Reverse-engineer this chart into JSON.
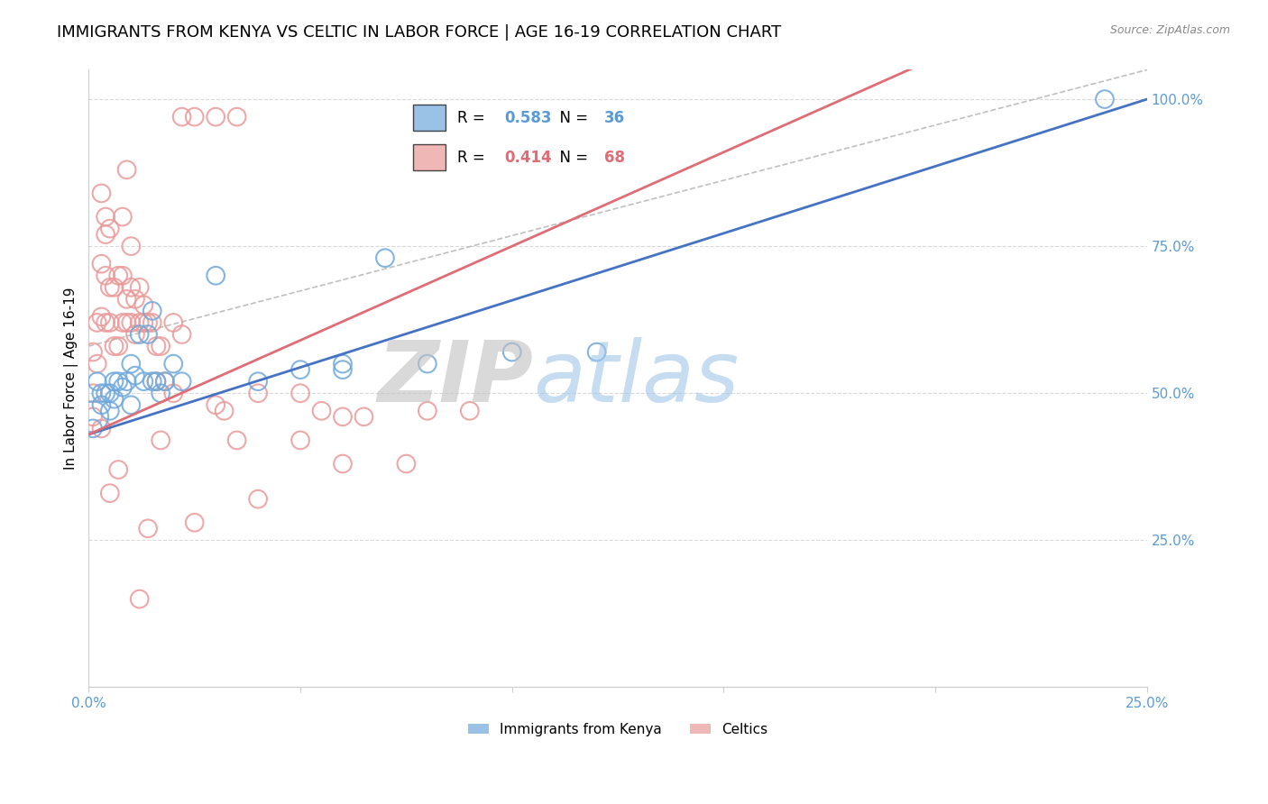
{
  "title": "IMMIGRANTS FROM KENYA VS CELTIC IN LABOR FORCE | AGE 16-19 CORRELATION CHART",
  "source": "Source: ZipAtlas.com",
  "ylabel_left": "In Labor Force | Age 16-19",
  "x_ticks": [
    0.0,
    0.05,
    0.1,
    0.15,
    0.2,
    0.25
  ],
  "y_ticks": [
    0.0,
    0.25,
    0.5,
    0.75,
    1.0
  ],
  "y_tick_labels": [
    "",
    "25.0%",
    "50.0%",
    "75.0%",
    "100.0%"
  ],
  "xlim": [
    0.0,
    0.25
  ],
  "ylim": [
    0.0,
    1.05
  ],
  "legend_R_kenya": "R = 0.583",
  "legend_N_kenya": "N = 36",
  "legend_R_celtic": "R = 0.414",
  "legend_N_celtic": "N = 68",
  "legend_labels_bottom": [
    "Immigrants from Kenya",
    "Celtics"
  ],
  "kenya_color": "#6fa8dc",
  "celtic_color": "#ea9999",
  "kenya_line_color": "#4472c4",
  "celtic_line_color": "#e06c75",
  "ref_line_color": "#c0c0c0",
  "background_color": "#ffffff",
  "grid_color": "#d9d9d9",
  "title_fontsize": 13,
  "axis_label_fontsize": 11,
  "tick_fontsize": 11,
  "tick_color": "#5b9bd5",
  "watermark_ZIP_color": "#c0c0c0",
  "watermark_atlas_color": "#9fc5e8",
  "watermark_fontsize": 68,
  "kenya_x": [
    0.001,
    0.001,
    0.002,
    0.003,
    0.003,
    0.004,
    0.005,
    0.005,
    0.006,
    0.006,
    0.007,
    0.008,
    0.009,
    0.01,
    0.01,
    0.011,
    0.012,
    0.013,
    0.014,
    0.015,
    0.015,
    0.016,
    0.017,
    0.018,
    0.02,
    0.022,
    0.03,
    0.04,
    0.05,
    0.06,
    0.06,
    0.07,
    0.08,
    0.1,
    0.12,
    0.24
  ],
  "kenya_y": [
    0.46,
    0.44,
    0.52,
    0.5,
    0.48,
    0.5,
    0.47,
    0.5,
    0.49,
    0.52,
    0.52,
    0.51,
    0.52,
    0.48,
    0.55,
    0.53,
    0.6,
    0.52,
    0.6,
    0.64,
    0.52,
    0.52,
    0.5,
    0.52,
    0.55,
    0.52,
    0.7,
    0.52,
    0.54,
    0.54,
    0.55,
    0.73,
    0.55,
    0.57,
    0.57,
    1.0
  ],
  "kenya_sizes": [
    600,
    200,
    200,
    200,
    200,
    200,
    200,
    200,
    200,
    200,
    200,
    200,
    200,
    200,
    200,
    200,
    200,
    200,
    200,
    200,
    200,
    200,
    200,
    200,
    200,
    200,
    200,
    200,
    200,
    200,
    200,
    200,
    200,
    200,
    200,
    200
  ],
  "celtic_x": [
    0.001,
    0.001,
    0.001,
    0.002,
    0.002,
    0.003,
    0.003,
    0.003,
    0.004,
    0.004,
    0.004,
    0.005,
    0.005,
    0.005,
    0.006,
    0.006,
    0.007,
    0.007,
    0.008,
    0.008,
    0.008,
    0.009,
    0.009,
    0.01,
    0.01,
    0.01,
    0.011,
    0.011,
    0.012,
    0.012,
    0.013,
    0.013,
    0.014,
    0.015,
    0.016,
    0.017,
    0.018,
    0.02,
    0.022,
    0.025,
    0.03,
    0.032,
    0.035,
    0.04,
    0.05,
    0.055,
    0.06,
    0.065,
    0.075,
    0.09,
    0.003,
    0.004,
    0.005,
    0.007,
    0.009,
    0.012,
    0.014,
    0.016,
    0.017,
    0.02,
    0.022,
    0.025,
    0.03,
    0.035,
    0.04,
    0.05,
    0.06,
    0.08
  ],
  "celtic_y": [
    0.46,
    0.5,
    0.57,
    0.55,
    0.62,
    0.44,
    0.63,
    0.72,
    0.62,
    0.7,
    0.77,
    0.62,
    0.68,
    0.78,
    0.58,
    0.68,
    0.58,
    0.7,
    0.62,
    0.7,
    0.8,
    0.62,
    0.66,
    0.62,
    0.68,
    0.75,
    0.6,
    0.66,
    0.62,
    0.68,
    0.62,
    0.65,
    0.62,
    0.62,
    0.58,
    0.58,
    0.52,
    0.5,
    0.6,
    0.28,
    0.48,
    0.47,
    0.42,
    0.5,
    0.42,
    0.47,
    0.46,
    0.46,
    0.38,
    0.47,
    0.84,
    0.8,
    0.33,
    0.37,
    0.88,
    0.15,
    0.27,
    0.52,
    0.42,
    0.62,
    0.97,
    0.97,
    0.97,
    0.97,
    0.32,
    0.5,
    0.38,
    0.47
  ],
  "celtic_sizes": [
    200,
    200,
    200,
    200,
    200,
    200,
    200,
    200,
    200,
    200,
    200,
    200,
    200,
    200,
    200,
    200,
    200,
    200,
    200,
    200,
    200,
    200,
    200,
    200,
    200,
    200,
    200,
    200,
    200,
    200,
    200,
    200,
    200,
    200,
    200,
    200,
    200,
    200,
    200,
    200,
    200,
    200,
    200,
    200,
    200,
    200,
    200,
    200,
    200,
    200,
    200,
    200,
    200,
    200,
    200,
    200,
    200,
    200,
    200,
    200,
    200,
    200,
    200,
    200,
    200,
    200,
    200,
    200
  ],
  "kenya_line_y0": 0.43,
  "kenya_line_y1": 1.0,
  "celtic_line_y0": 0.43,
  "celtic_line_slope": 3.2,
  "ref_line_x": [
    0.0,
    0.25
  ],
  "ref_line_y": [
    0.58,
    1.05
  ]
}
